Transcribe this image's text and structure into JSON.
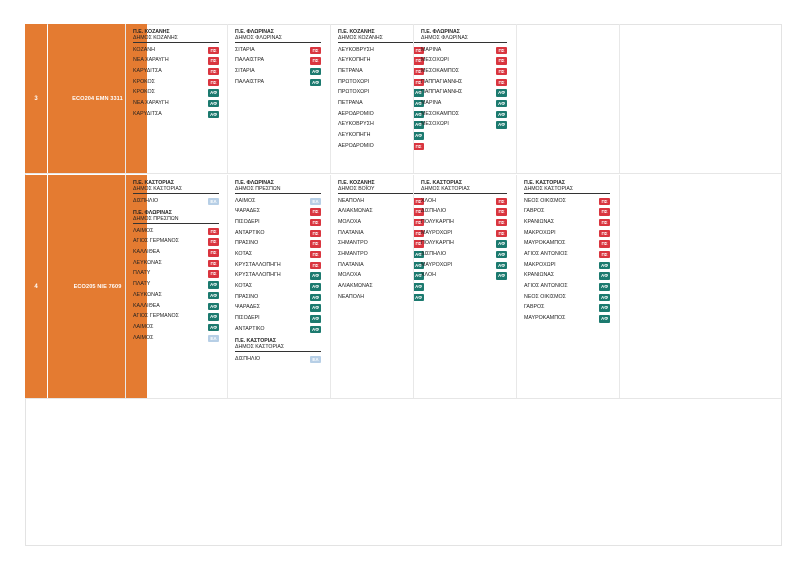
{
  "badge_colors": {
    "ΠΣ": "#d9353f",
    "ΑΦ": "#1c7a6f",
    "ΕΛ": "#b7cfe6"
  },
  "routes": [
    {
      "number": "3",
      "code": "ECO204  ΕΜΝ 3311",
      "columns": [
        [
          {
            "prefecture": "Π.Ε. ΚΟΖΑΝΗΣ",
            "municipality": "ΔΗΜΟΣ ΚΟΖΑΝΗΣ",
            "stops": [
              {
                "name": "ΚΟΖΑΝΗ",
                "badge": "ΠΣ"
              },
              {
                "name": "ΝΕΑ ΧΑΡΑΥΓΗ",
                "badge": "ΠΣ"
              },
              {
                "name": "ΚΑΡΥΔΙΤΣΑ",
                "badge": "ΠΣ"
              },
              {
                "name": "ΚΡΟΚΟΣ",
                "badge": "ΠΣ"
              },
              {
                "name": "ΚΡΟΚΟΣ",
                "badge": "ΑΦ"
              },
              {
                "name": "ΝΕΑ ΧΑΡΑΥΓΗ",
                "badge": "ΑΦ"
              },
              {
                "name": "ΚΑΡΥΔΙΤΣΑ",
                "badge": "ΑΦ"
              }
            ]
          }
        ],
        [
          {
            "prefecture": "Π.Ε. ΦΛΩΡΙΝΑΣ",
            "municipality": "ΔΗΜΟΣ ΦΛΩΡΙΝΑΣ",
            "stops": [
              {
                "name": "ΣΙΤΑΡΙΑ",
                "badge": "ΠΣ"
              },
              {
                "name": "ΠΑΛΑΙΣΤΡΑ",
                "badge": "ΠΣ"
              },
              {
                "name": "ΣΙΤΑΡΙΑ",
                "badge": "ΑΦ"
              },
              {
                "name": "ΠΑΛΑΙΣΤΡΑ",
                "badge": "ΑΦ"
              }
            ]
          }
        ],
        [
          {
            "prefecture": "Π.Ε. ΚΟΖΑΝΗΣ",
            "municipality": "ΔΗΜΟΣ ΚΟΖΑΝΗΣ",
            "stops": [
              {
                "name": "ΛΕΥΚΟΒΡΥΣΗ",
                "badge": "ΠΣ"
              },
              {
                "name": "ΛΕΥΚΟΠΗΓΗ",
                "badge": "ΠΣ"
              },
              {
                "name": "ΠΕΤΡΑΝΑ",
                "badge": "ΠΣ"
              },
              {
                "name": "ΠΡΩΤΟΧΩΡΙ",
                "badge": "ΠΣ"
              },
              {
                "name": "ΠΡΩΤΟΧΩΡΙ",
                "badge": "ΑΦ"
              },
              {
                "name": "ΠΕΤΡΑΝΑ",
                "badge": "ΑΦ"
              },
              {
                "name": "ΑΕΡΟΔΡΟΜΙΟ",
                "badge": "ΑΦ"
              },
              {
                "name": "ΛΕΥΚΟΒΡΥΣΗ",
                "badge": "ΑΦ"
              },
              {
                "name": "ΛΕΥΚΟΠΗΓΗ",
                "badge": "ΑΦ"
              },
              {
                "name": "ΑΕΡΟΔΡΟΜΙΟ",
                "badge": "ΠΣ"
              }
            ]
          }
        ],
        [
          {
            "prefecture": "Π.Ε. ΦΛΩΡΙΝΑΣ",
            "municipality": "ΔΗΜΟΣ ΦΛΩΡΙΝΑΣ",
            "stops": [
              {
                "name": "ΜΑΡΙΝΑ",
                "badge": "ΠΣ"
              },
              {
                "name": "ΜΕΣΟΧΩΡΙ",
                "badge": "ΠΣ"
              },
              {
                "name": "ΜΕΣΟΚΑΜΠΟΣ",
                "badge": "ΠΣ"
              },
              {
                "name": "ΠΑΠΠΑΓΙΑΝΝΗΣ",
                "badge": "ΠΣ"
              },
              {
                "name": "ΠΑΠΠΑΓΙΑΝΝΗΣ",
                "badge": "ΑΦ"
              },
              {
                "name": "ΜΑΡΙΝΑ",
                "badge": "ΑΦ"
              },
              {
                "name": "ΜΕΣΟΚΑΜΠΟΣ",
                "badge": "ΑΦ"
              },
              {
                "name": "ΜΕΣΟΧΩΡΙ",
                "badge": "ΑΦ"
              }
            ]
          }
        ],
        [],
        []
      ]
    },
    {
      "number": "4",
      "code": "ECO205  ΝΙΕ 7609",
      "columns": [
        [
          {
            "prefecture": "Π.Ε. ΚΑΣΤΟΡΙΑΣ",
            "municipality": "ΔΗΜΟΣ ΚΑΣΤΟΡΙΑΣ",
            "stops": [
              {
                "name": "ΔΙΣΠΗΛΙΟ",
                "badge": "ΕΛ"
              }
            ]
          },
          {
            "prefecture": "Π.Ε. ΦΛΩΡΙΝΑΣ",
            "municipality": "ΔΗΜΟΣ ΠΡΕΣΠΩΝ",
            "stops": [
              {
                "name": "ΛΑΙΜΟΣ",
                "badge": "ΠΣ"
              },
              {
                "name": "ΑΓΙΟΣ ΓΕΡΜΑΝΟΣ",
                "badge": "ΠΣ"
              },
              {
                "name": "ΚΑΛΛΙΘΕΑ",
                "badge": "ΠΣ"
              },
              {
                "name": "ΛΕΥΚΩΝΑΣ",
                "badge": "ΠΣ"
              },
              {
                "name": "ΠΛΑΤΥ",
                "badge": "ΠΣ"
              },
              {
                "name": "ΠΛΑΤΥ",
                "badge": "ΑΦ"
              },
              {
                "name": "ΛΕΥΚΩΝΑΣ",
                "badge": "ΑΦ"
              },
              {
                "name": "ΚΑΛΛΙΘΕΑ",
                "badge": "ΑΦ"
              },
              {
                "name": "ΑΓΙΟΣ ΓΕΡΜΑΝΟΣ",
                "badge": "ΑΦ"
              },
              {
                "name": "ΛΑΙΜΟΣ",
                "badge": "ΑΦ"
              },
              {
                "name": "ΛΑΙΜΟΣ",
                "badge": "ΕΛ"
              }
            ]
          }
        ],
        [
          {
            "prefecture": "Π.Ε. ΦΛΩΡΙΝΑΣ",
            "municipality": "ΔΗΜΟΣ ΠΡΕΣΠΩΝ",
            "stops": [
              {
                "name": "ΛΑΙΜΟΣ",
                "badge": "ΕΛ"
              },
              {
                "name": "ΨΑΡΑΔΕΣ",
                "badge": "ΠΣ"
              },
              {
                "name": "ΠΙΣΟΔΕΡΙ",
                "badge": "ΠΣ"
              },
              {
                "name": "ΑΝΤΑΡΤΙΚΟ",
                "badge": "ΠΣ"
              },
              {
                "name": "ΠΡΑΣΙΝΟ",
                "badge": "ΠΣ"
              },
              {
                "name": "ΚΟΤΑΣ",
                "badge": "ΠΣ"
              },
              {
                "name": "ΚΡΥΣΤΑΛΛΟΠΗΓΗ",
                "badge": "ΠΣ"
              },
              {
                "name": "ΚΡΥΣΤΑΛΛΟΠΗΓΗ",
                "badge": "ΑΦ"
              },
              {
                "name": "ΚΟΤΑΣ",
                "badge": "ΑΦ"
              },
              {
                "name": "ΠΡΑΣΙΝΟ",
                "badge": "ΑΦ"
              },
              {
                "name": "ΨΑΡΑΔΕΣ",
                "badge": "ΑΦ"
              },
              {
                "name": "ΠΙΣΟΔΕΡΙ",
                "badge": "ΑΦ"
              },
              {
                "name": "ΑΝΤΑΡΤΙΚΟ",
                "badge": "ΑΦ"
              }
            ]
          },
          {
            "prefecture": "Π.Ε. ΚΑΣΤΟΡΙΑΣ",
            "municipality": "ΔΗΜΟΣ ΚΑΣΤΟΡΙΑΣ",
            "stops": [
              {
                "name": "ΔΙΣΠΗΛΙΟ",
                "badge": "ΕΛ"
              }
            ]
          }
        ],
        [
          {
            "prefecture": "Π.Ε. ΚΟΖΑΝΗΣ",
            "municipality": "ΔΗΜΟΣ ΒΟΪΟΥ",
            "stops": [
              {
                "name": "ΝΕΑΠΟΛΗ",
                "badge": "ΠΣ"
              },
              {
                "name": "ΑΛΙΑΚΜΩΝΑΣ",
                "badge": "ΠΣ"
              },
              {
                "name": "ΜΟΛΟΧΑ",
                "badge": "ΠΣ"
              },
              {
                "name": "ΠΛΑΤΑΝΙΑ",
                "badge": "ΠΣ"
              },
              {
                "name": "ΣΗΜΑΝΤΡΟ",
                "badge": "ΠΣ"
              },
              {
                "name": "ΣΗΜΑΝΤΡΟ",
                "badge": "ΑΦ"
              },
              {
                "name": "ΠΛΑΤΑΝΙΑ",
                "badge": "ΑΦ"
              },
              {
                "name": "ΜΟΛΟΧΑ",
                "badge": "ΑΦ"
              },
              {
                "name": "ΑΛΙΑΚΜΩΝΑΣ",
                "badge": "ΑΦ"
              },
              {
                "name": "ΝΕΑΠΟΛΗ",
                "badge": "ΑΦ"
              }
            ]
          }
        ],
        [
          {
            "prefecture": "Π.Ε. ΚΑΣΤΟΡΙΑΣ",
            "municipality": "ΔΗΜΟΣ ΚΑΣΤΟΡΙΑΣ",
            "stops": [
              {
                "name": "ΧΛΟΗ",
                "badge": "ΠΣ"
              },
              {
                "name": "ΔΙΣΠΗΛΙΟ",
                "badge": "ΠΣ"
              },
              {
                "name": "ΠΟΛΥΚΑΡΠΗ",
                "badge": "ΠΣ"
              },
              {
                "name": "ΜΑΥΡΟΧΩΡΙ",
                "badge": "ΠΣ"
              },
              {
                "name": "ΠΟΛΥΚΑΡΠΗ",
                "badge": "ΑΦ"
              },
              {
                "name": "ΔΙΣΠΗΛΙΟ",
                "badge": "ΑΦ"
              },
              {
                "name": "ΜΑΥΡΟΧΩΡΙ",
                "badge": "ΑΦ"
              },
              {
                "name": "ΧΛΟΗ",
                "badge": "ΑΦ"
              }
            ]
          }
        ],
        [
          {
            "prefecture": "Π.Ε. ΚΑΣΤΟΡΙΑΣ",
            "municipality": "ΔΗΜΟΣ ΚΑΣΤΟΡΙΑΣ",
            "stops": [
              {
                "name": "ΝΕΟΣ ΟΙΚΙΣΜΟΣ",
                "badge": "ΠΣ"
              },
              {
                "name": "ΓΑΒΡΟΣ",
                "badge": "ΠΣ"
              },
              {
                "name": "ΚΡΑΝΙΩΝΑΣ",
                "badge": "ΠΣ"
              },
              {
                "name": "ΜΑΚΡΟΧΩΡΙ",
                "badge": "ΠΣ"
              },
              {
                "name": "ΜΑΥΡΟΚΑΜΠΟΣ",
                "badge": "ΠΣ"
              },
              {
                "name": "ΑΓΙΟΣ ΑΝΤΩΝΙΟΣ",
                "badge": "ΠΣ"
              },
              {
                "name": "ΜΑΚΡΟΧΩΡΙ",
                "badge": "ΑΦ"
              },
              {
                "name": "ΚΡΑΝΙΩΝΑΣ",
                "badge": "ΑΦ"
              },
              {
                "name": "ΑΓΙΟΣ ΑΝΤΩΝΙΟΣ",
                "badge": "ΑΦ"
              },
              {
                "name": "ΝΕΟΣ ΟΙΚΙΣΜΟΣ",
                "badge": "ΑΦ"
              },
              {
                "name": "ΓΑΒΡΟΣ",
                "badge": "ΑΦ"
              },
              {
                "name": "ΜΑΥΡΟΚΑΜΠΟΣ",
                "badge": "ΑΦ"
              }
            ]
          }
        ],
        []
      ]
    }
  ]
}
